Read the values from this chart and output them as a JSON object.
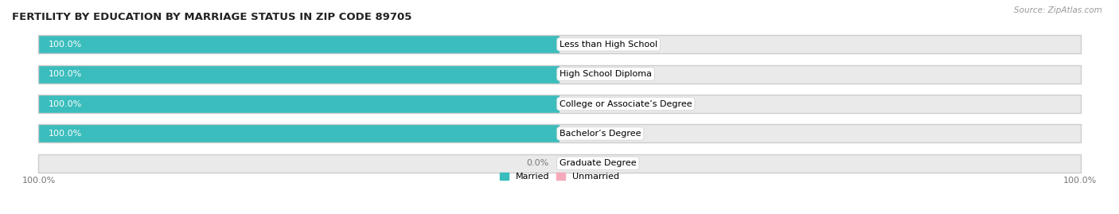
{
  "title": "FERTILITY BY EDUCATION BY MARRIAGE STATUS IN ZIP CODE 89705",
  "source": "Source: ZipAtlas.com",
  "categories": [
    "Less than High School",
    "High School Diploma",
    "College or Associate’s Degree",
    "Bachelor’s Degree",
    "Graduate Degree"
  ],
  "married_values": [
    100.0,
    100.0,
    100.0,
    100.0,
    0.0
  ],
  "unmarried_values": [
    0.0,
    0.0,
    0.0,
    0.0,
    0.0
  ],
  "married_color": "#3BBDBD",
  "unmarried_color": "#F5AABC",
  "bar_bg_color": "#EAEAEA",
  "bar_height": 0.62,
  "background_color": "#FFFFFF",
  "title_fontsize": 9.5,
  "source_fontsize": 7.5,
  "label_fontsize": 8,
  "category_fontsize": 8,
  "married_label_color": "#FFFFFF",
  "value_label_color": "#777777",
  "bottom_left_label": "100.0%",
  "bottom_right_label": "100.0%"
}
